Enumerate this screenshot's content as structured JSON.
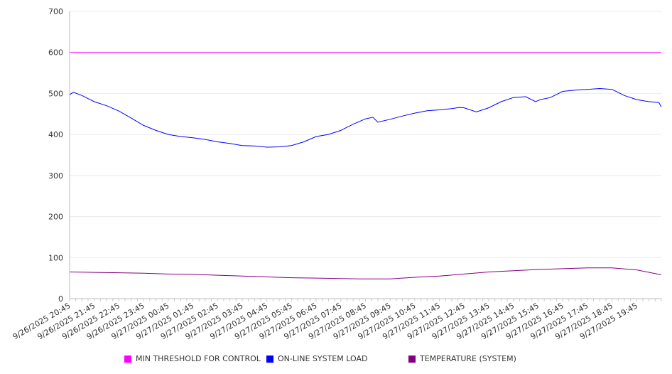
{
  "chart_data": {
    "type": "line",
    "title": "",
    "xlabel": "",
    "ylabel": "",
    "ylim": [
      0,
      700
    ],
    "yticks": [
      "0",
      "100",
      "200",
      "300",
      "400",
      "500",
      "600",
      "700"
    ],
    "grid": true,
    "legend_position": "bottom",
    "x_unit": "hours after 9/26/2025 20:45",
    "x_range": [
      0,
      24
    ],
    "xtick_labels": [
      "9/26/2025 20:45",
      "9/26/2025 21:45",
      "9/26/2025 22:45",
      "9/26/2025 23:45",
      "9/27/2025 00:45",
      "9/27/2025 01:45",
      "9/27/2025 02:45",
      "9/27/2025 03:45",
      "9/27/2025 04:45",
      "9/27/2025 05:45",
      "9/27/2025 06:45",
      "9/27/2025 07:45",
      "9/27/2025 08:45",
      "9/27/2025 09:45",
      "9/27/2025 10:45",
      "9/27/2025 11:45",
      "9/27/2025 12:45",
      "9/27/2025 13:45",
      "9/27/2025 14:45",
      "9/27/2025 15:45",
      "9/27/2025 16:45",
      "9/27/2025 17:45",
      "9/27/2025 18:45",
      "9/27/2025 19:45"
    ],
    "series": [
      {
        "name": "MIN THRESHOLD FOR CONTROL",
        "color": "#ff00ff",
        "x": [
          0,
          24
        ],
        "values": [
          600,
          600
        ]
      },
      {
        "name": "ON-LINE SYSTEM LOAD",
        "color": "#0000ff",
        "x": [
          0,
          0.15,
          0.5,
          1,
          1.5,
          2,
          2.5,
          3,
          3.5,
          4,
          4.5,
          5,
          5.5,
          6,
          6.5,
          7,
          7.5,
          8,
          8.5,
          9,
          9.5,
          10,
          10.5,
          11,
          11.5,
          12,
          12.3,
          12.5,
          13,
          13.5,
          14,
          14.5,
          15,
          15.5,
          15.8,
          16,
          16.5,
          17,
          17.5,
          18,
          18.5,
          18.9,
          19.1,
          19.5,
          20,
          20.5,
          21,
          21.5,
          22,
          22.5,
          23,
          23.5,
          23.9,
          24
        ],
        "values": [
          497,
          503,
          495,
          480,
          470,
          457,
          440,
          422,
          410,
          400,
          395,
          392,
          388,
          382,
          378,
          373,
          372,
          369,
          370,
          373,
          382,
          395,
          400,
          410,
          425,
          438,
          442,
          430,
          437,
          445,
          452,
          458,
          460,
          463,
          466,
          465,
          455,
          465,
          480,
          490,
          492,
          480,
          485,
          490,
          505,
          508,
          510,
          512,
          510,
          495,
          485,
          480,
          478,
          467
        ]
      },
      {
        "name": "TEMPERATURE (SYSTEM)",
        "color": "#800080",
        "x": [
          0,
          1,
          2,
          3,
          4,
          5,
          6,
          7,
          8,
          9,
          10,
          11,
          12,
          13,
          14,
          15,
          16,
          17,
          18,
          19,
          20,
          21,
          22,
          23,
          24
        ],
        "values": [
          65,
          64,
          63,
          62,
          60,
          59,
          57,
          55,
          53,
          51,
          50,
          49,
          48,
          48,
          52,
          55,
          60,
          65,
          68,
          71,
          73,
          75,
          75,
          70,
          58
        ]
      }
    ]
  }
}
